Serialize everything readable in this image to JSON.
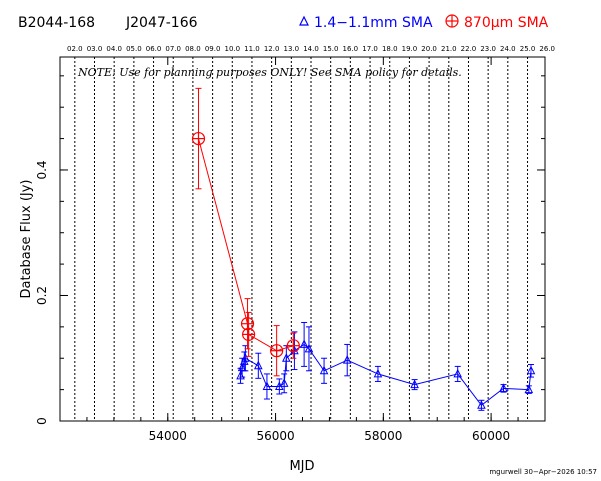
{
  "header": {
    "source_name": "B2044-168",
    "alt_name": "J2047-166",
    "legend_blue": "1.4−1.1mm SMA",
    "legend_red": "870μm SMA"
  },
  "note": "NOTE: Use for planning purposes ONLY!  See SMA policy for details.",
  "credit": "mgurwell 30−Apr−2026 10:57",
  "colors": {
    "blue": "#0000ff",
    "red": "#ff0000"
  },
  "chart_data": {
    "type": "scatter",
    "xlabel": "MJD",
    "ylabel": "Database Flux (Jy)",
    "xlim": [
      52000,
      61000
    ],
    "ylim": [
      0,
      0.58
    ],
    "xticks": [
      54000,
      56000,
      58000,
      60000
    ],
    "xtick_labels": [
      "54000",
      "56000",
      "58000",
      "60000"
    ],
    "yticks": [
      0,
      0.2,
      0.4
    ],
    "ytick_labels": [
      "0",
      "0.2",
      "0.4"
    ],
    "top_axis_year_labels": [
      "02.0",
      "03.0",
      "04.0",
      "05.0",
      "06.0",
      "07.0",
      "08.0",
      "09.0",
      "10.0",
      "11.0",
      "12.0",
      "13.0",
      "14.0",
      "15.0",
      "16.0",
      "17.0",
      "18.0",
      "19.0",
      "20.0",
      "21.0",
      "22.0",
      "23.0",
      "24.0",
      "25.0",
      "26.0"
    ],
    "top_axis_year_mjd": [
      52275,
      52640,
      53005,
      53371,
      53736,
      54101,
      54466,
      54832,
      55197,
      55562,
      55927,
      56293,
      56658,
      57023,
      57388,
      57754,
      58119,
      58484,
      58849,
      59215,
      59580,
      59945,
      60310,
      60676,
      61041
    ],
    "series": [
      {
        "name": "1.4−1.1mm SMA",
        "color": "#0000ff",
        "marker": "triangle",
        "points": [
          {
            "x": 55350,
            "y": 0.072,
            "err": 0.012
          },
          {
            "x": 55380,
            "y": 0.085,
            "err": 0.015
          },
          {
            "x": 55420,
            "y": 0.095,
            "err": 0.015
          },
          {
            "x": 55440,
            "y": 0.1,
            "err": 0.02
          },
          {
            "x": 55680,
            "y": 0.088,
            "err": 0.02
          },
          {
            "x": 55840,
            "y": 0.055,
            "err": 0.02
          },
          {
            "x": 56070,
            "y": 0.055,
            "err": 0.012
          },
          {
            "x": 56160,
            "y": 0.06,
            "err": 0.015
          },
          {
            "x": 56200,
            "y": 0.1,
            "err": 0.02
          },
          {
            "x": 56350,
            "y": 0.112,
            "err": 0.03
          },
          {
            "x": 56530,
            "y": 0.122,
            "err": 0.035
          },
          {
            "x": 56620,
            "y": 0.115,
            "err": 0.035
          },
          {
            "x": 56900,
            "y": 0.08,
            "err": 0.02
          },
          {
            "x": 57330,
            "y": 0.097,
            "err": 0.025
          },
          {
            "x": 57900,
            "y": 0.075,
            "err": 0.012
          },
          {
            "x": 58580,
            "y": 0.058,
            "err": 0.008
          },
          {
            "x": 59380,
            "y": 0.075,
            "err": 0.012
          },
          {
            "x": 59820,
            "y": 0.025,
            "err": 0.008
          },
          {
            "x": 60230,
            "y": 0.052,
            "err": 0.006
          },
          {
            "x": 60700,
            "y": 0.05,
            "err": 0.006
          },
          {
            "x": 60740,
            "y": 0.08,
            "err": 0.01
          }
        ]
      },
      {
        "name": "870μm SMA",
        "color": "#ff0000",
        "marker": "circle-plus",
        "points": [
          {
            "x": 54570,
            "y": 0.45,
            "err": 0.08
          },
          {
            "x": 55480,
            "y": 0.155,
            "err": 0.04
          },
          {
            "x": 55500,
            "y": 0.138,
            "err": 0.035
          },
          {
            "x": 56020,
            "y": 0.112,
            "err": 0.04
          },
          {
            "x": 56330,
            "y": 0.12,
            "err": 0.02
          }
        ]
      }
    ]
  }
}
